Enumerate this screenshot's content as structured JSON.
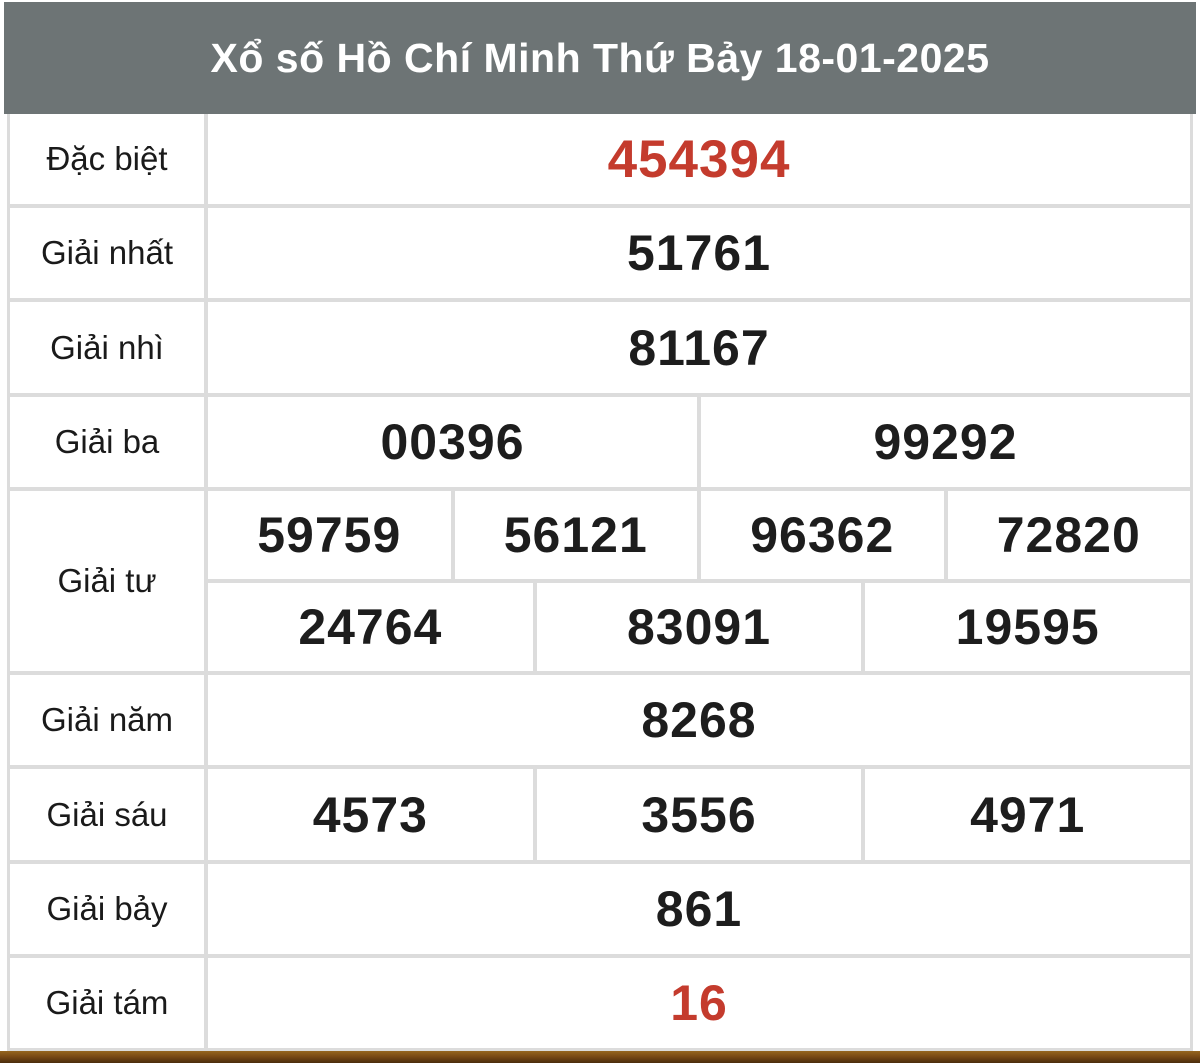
{
  "header": {
    "title": "Xổ số Hồ Chí Minh Thứ Bảy 18-01-2025"
  },
  "colors": {
    "header_bg": "#6d7475",
    "header_text": "#ffffff",
    "highlight": "#c43b2d",
    "number": "#1d1d1d",
    "border": "#dcdcdc",
    "bottom_bar": "#7a4a15"
  },
  "rows": [
    {
      "label": "Đặc biệt",
      "cells": [
        "454394"
      ],
      "highlight": true
    },
    {
      "label": "Giải nhất",
      "cells": [
        "51761"
      ],
      "highlight": false
    },
    {
      "label": "Giải nhì",
      "cells": [
        "81167"
      ],
      "highlight": false
    },
    {
      "label": "Giải ba",
      "cells": [
        "00396",
        "99292"
      ],
      "highlight": false
    },
    {
      "label": "Giải tư",
      "lines": [
        [
          "59759",
          "56121",
          "96362",
          "72820"
        ],
        [
          "24764",
          "83091",
          "19595"
        ]
      ],
      "highlight": false
    },
    {
      "label": "Giải năm",
      "cells": [
        "8268"
      ],
      "highlight": false
    },
    {
      "label": "Giải sáu",
      "cells": [
        "4573",
        "3556",
        "4971"
      ],
      "highlight": false
    },
    {
      "label": "Giải bảy",
      "cells": [
        "861"
      ],
      "highlight": false
    },
    {
      "label": "Giải tám",
      "cells": [
        "16"
      ],
      "highlight": true
    }
  ]
}
